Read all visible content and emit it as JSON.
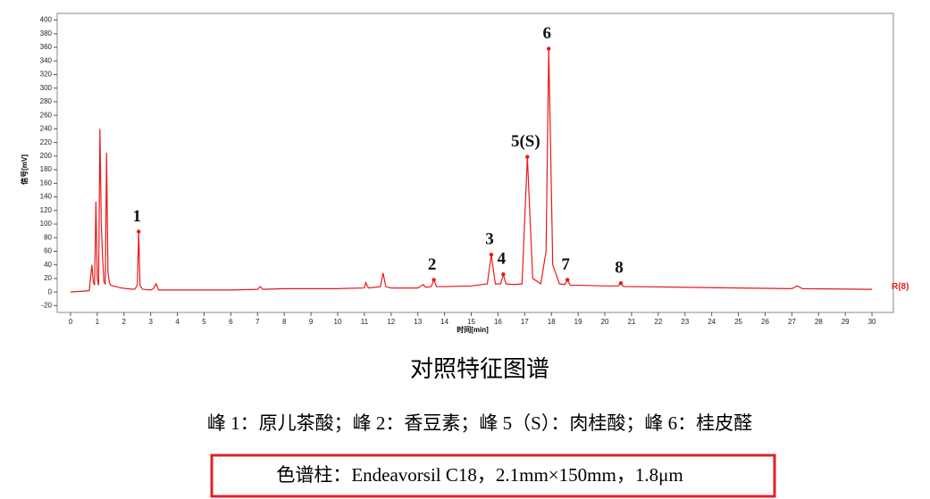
{
  "chart_data": {
    "type": "line",
    "xlabel": "时间[min]",
    "ylabel": "信号[mV]",
    "xlim": [
      -0.5,
      30.8
    ],
    "ylim": [
      -30,
      410
    ],
    "xticks": [
      0,
      1,
      2,
      3,
      4,
      5,
      6,
      7,
      8,
      9,
      10,
      11,
      12,
      13,
      14,
      15,
      16,
      17,
      18,
      19,
      20,
      21,
      22,
      23,
      24,
      25,
      26,
      27,
      28,
      29,
      30
    ],
    "yticks": [
      -20,
      0,
      20,
      40,
      60,
      80,
      100,
      120,
      140,
      160,
      180,
      200,
      220,
      240,
      260,
      280,
      300,
      320,
      340,
      360,
      380,
      400
    ],
    "x": [
      0,
      0.7,
      0.8,
      0.85,
      0.9,
      0.95,
      1.0,
      1.05,
      1.1,
      1.15,
      1.2,
      1.25,
      1.3,
      1.35,
      1.4,
      1.45,
      1.5,
      1.7,
      1.9,
      2.1,
      2.4,
      2.5,
      2.55,
      2.6,
      2.7,
      3.0,
      3.1,
      3.2,
      3.3,
      4,
      5,
      6,
      7,
      7.1,
      7.2,
      8,
      9,
      10,
      11,
      11.05,
      11.15,
      11.6,
      11.7,
      11.8,
      12,
      13,
      13.2,
      13.3,
      13.5,
      13.6,
      13.7,
      14,
      15,
      15.6,
      15.75,
      15.9,
      16.1,
      16.2,
      16.3,
      16.6,
      16.9,
      17.1,
      17.3,
      17.6,
      17.8,
      17.9,
      18.05,
      18.3,
      18.5,
      18.6,
      18.7,
      19,
      20,
      20.5,
      20.6,
      20.7,
      21,
      25,
      27,
      27.2,
      27.4,
      30
    ],
    "series": [
      {
        "name": "R(8)",
        "color": "#e8191b",
        "values": [
          0,
          2,
          40,
          15,
          10,
          133,
          20,
          10,
          240,
          102,
          50,
          15,
          12,
          205,
          30,
          15,
          10,
          8,
          6,
          5,
          4,
          10,
          89,
          10,
          4,
          3,
          5,
          12,
          3,
          3,
          3,
          3,
          4,
          8,
          4,
          5,
          5,
          5,
          6,
          14,
          6,
          8,
          28,
          8,
          6,
          6,
          11,
          7,
          8,
          18,
          8,
          8,
          9,
          12,
          55,
          12,
          12,
          26,
          12,
          11,
          12,
          199,
          20,
          12,
          60,
          358,
          40,
          12,
          11,
          18,
          10,
          10,
          9,
          9,
          13,
          8,
          8,
          6,
          5,
          9,
          5,
          4
        ]
      }
    ],
    "annotations": [
      {
        "label": "1",
        "x": 2.55,
        "y": 89
      },
      {
        "label": "2",
        "x": 13.6,
        "y": 18
      },
      {
        "label": "3",
        "x": 15.75,
        "y": 55
      },
      {
        "label": "4",
        "x": 16.2,
        "y": 26
      },
      {
        "label": "5(S)",
        "x": 17.1,
        "y": 199
      },
      {
        "label": "6",
        "x": 17.9,
        "y": 358
      },
      {
        "label": "7",
        "x": 18.6,
        "y": 18
      },
      {
        "label": "8",
        "x": 20.6,
        "y": 13
      }
    ]
  },
  "caption": {
    "title": "对照特征图谱",
    "peaks": "峰 1：原儿茶酸；峰 2：香豆素；峰 5（S）：肉桂酸；峰 6：桂皮醛",
    "column": "色谱柱：Endeavorsil C18，2.1mm×150mm，1.8μm"
  }
}
